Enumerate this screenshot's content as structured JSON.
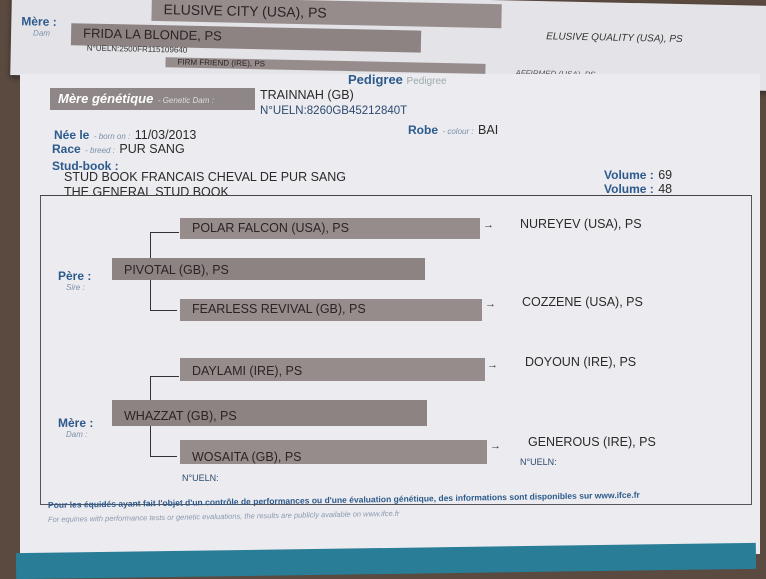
{
  "previous_page": {
    "dam_label": "Mère :",
    "dam_sub": "Dam",
    "sire_of_dam": "ELUSIVE CITY (USA), PS",
    "dam_name": "FRIDA LA BLONDE, PS",
    "dam_ueln": "N°UELN:2500FR115109640",
    "dam_of_dam": "FIRM FRIEND (IRE), PS",
    "grandsire_right": "ELUSIVE QUALITY (USA), PS",
    "granddam_right": "AFFIRMED (USA), PS"
  },
  "header": {
    "title": "Pedigree",
    "subtitle": "Pedigree"
  },
  "genetic_dam": {
    "label": "Mère génétique",
    "sub": "- Genetic Dam :",
    "name": "TRAINNAH (GB)",
    "ueln": "N°UELN:8260GB45212840T"
  },
  "details": {
    "born_label": "Née le",
    "born_sub": "- born on :",
    "born_value": "11/03/2013",
    "breed_label": "Race",
    "breed_sub": "- breed :",
    "breed_value": "PUR SANG",
    "colour_label": "Robe",
    "colour_sub": "- colour :",
    "colour_value": "BAI",
    "studbook_label": "Stud-book :",
    "studbooks": [
      {
        "name": "STUD BOOK FRANCAIS CHEVAL DE PUR SANG",
        "volume_label": "Volume :",
        "volume": "69"
      },
      {
        "name": "THE GENERAL STUD BOOK",
        "volume_label": "Volume :",
        "volume": "48"
      }
    ]
  },
  "pedigree": {
    "sire_label": "Père :",
    "sire_sub": "Sire :",
    "sire": "PIVOTAL (GB), PS",
    "sire_sire": "POLAR FALCON (USA), PS",
    "sire_sire_sire": "NUREYEV (USA), PS",
    "sire_dam": "FEARLESS REVIVAL (GB), PS",
    "sire_dam_sire": "COZZENE (USA), PS",
    "dam_label": "Mère :",
    "dam_sub": "Dam :",
    "dam": "WHAZZAT (GB), PS",
    "dam_sire": "DAYLAMI (IRE), PS",
    "dam_sire_sire": "DOYOUN (IRE), PS",
    "dam_dam": "WOSAITA (GB), PS",
    "dam_dam_sire": "GENEROUS (IRE), PS",
    "ueln_label": "N°UELN:"
  },
  "footer": {
    "fr": "Pour les équidés ayant fait l'objet d'un contrôle de performances ou d'une évaluation génétique, des informations sont disponibles sur www.ifce.fr",
    "en": "For equines with performance tests or genetic evaluations, the results are publicly available on www.ifce.fr"
  }
}
